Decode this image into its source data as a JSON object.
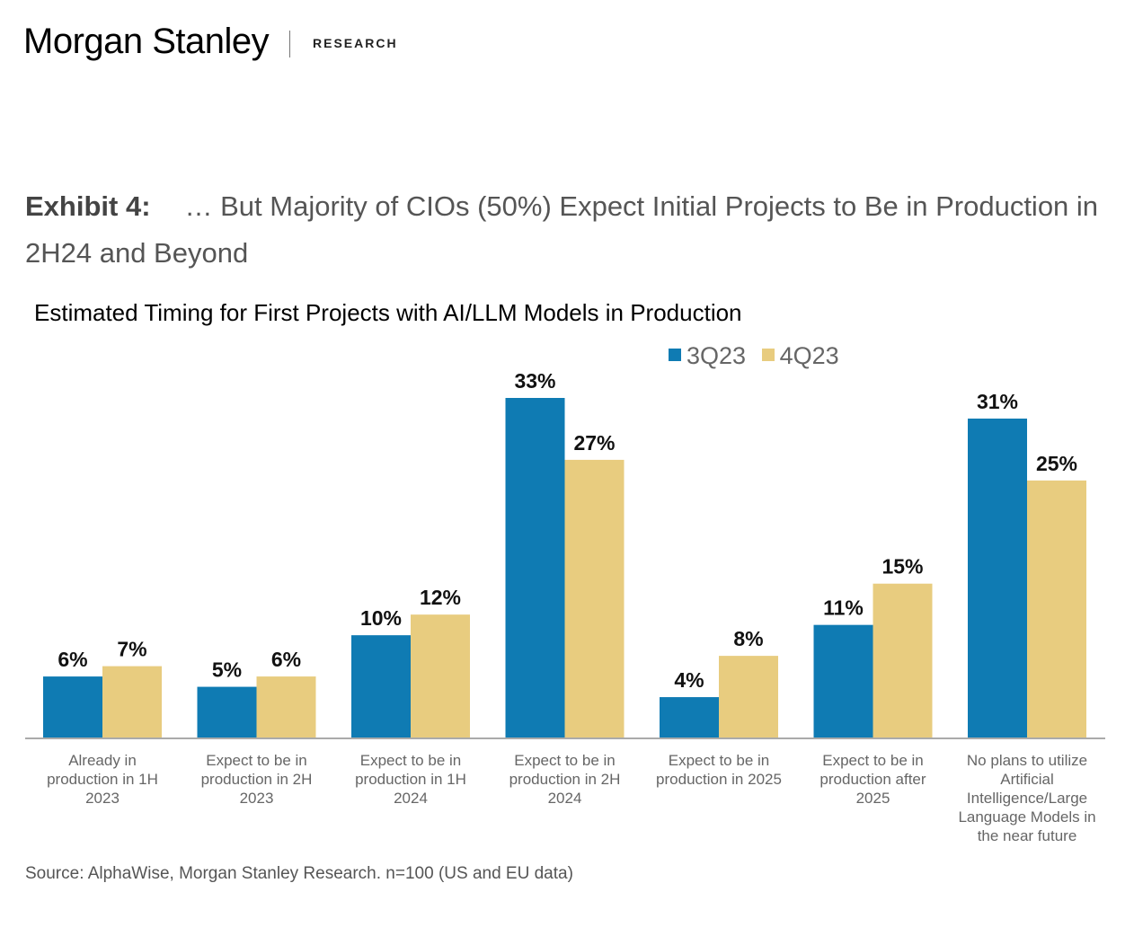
{
  "header": {
    "brand": "Morgan Stanley",
    "section": "RESEARCH"
  },
  "exhibit": {
    "label": "Exhibit 4:",
    "title": "… But Majority of CIOs (50%) Expect Initial Projects to Be in Production in 2H24 and Beyond"
  },
  "source": "Source: AlphaWise, Morgan Stanley Research. n=100 (US and EU data)",
  "colors": {
    "series_3q23": "#0f7bb3",
    "series_4q23": "#e8cc7f",
    "axis": "#aaaaaa"
  },
  "chart_data": {
    "type": "bar",
    "title": "Estimated Timing for First Projects with AI/LLM Models in Production",
    "legend_position": "top-right",
    "grid": false,
    "ylim": [
      0,
      33
    ],
    "categories": [
      [
        "Already in",
        "production in 1H",
        "2023"
      ],
      [
        "Expect to be in",
        "production in 2H",
        "2023"
      ],
      [
        "Expect to be in",
        "production in 1H",
        "2024"
      ],
      [
        "Expect to be in",
        "production in 2H",
        "2024"
      ],
      [
        "Expect to be in",
        "production in 2025"
      ],
      [
        "Expect to be in",
        "production after",
        "2025"
      ],
      [
        "No plans to utilize",
        "Artificial",
        "Intelligence/Large",
        "Language Models in",
        "the near future"
      ]
    ],
    "series": [
      {
        "name": "3Q23",
        "values": [
          6,
          5,
          10,
          33,
          4,
          11,
          31
        ],
        "labels": [
          "6%",
          "5%",
          "10%",
          "33%",
          "4%",
          "11%",
          "31%"
        ]
      },
      {
        "name": "4Q23",
        "values": [
          7,
          6,
          12,
          27,
          8,
          15,
          25
        ],
        "labels": [
          "7%",
          "6%",
          "12%",
          "27%",
          "8%",
          "15%",
          "25%"
        ]
      }
    ]
  }
}
